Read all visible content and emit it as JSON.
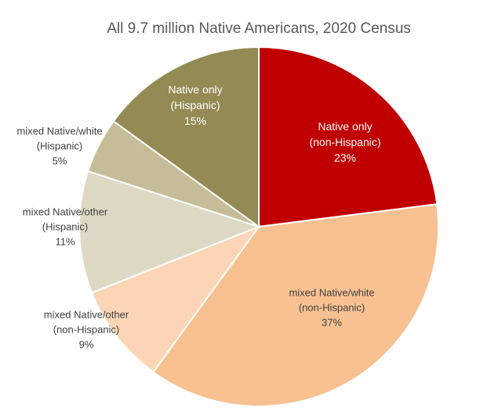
{
  "chart_data": {
    "type": "pie",
    "title": "All 9.7 million Native Americans, 2020 Census",
    "start": "12 o'clock, clockwise",
    "slices": [
      {
        "line1": "Native only",
        "line2": "(non-Hispanic)",
        "pct_label": "23%",
        "value": 23,
        "color": "#C00000",
        "label_color": "#FFFFFF"
      },
      {
        "line1": "mixed Native/white",
        "line2": "(non-Hispanic)",
        "pct_label": "37%",
        "value": 37,
        "color": "#F8C191",
        "label_color": "#404040"
      },
      {
        "line1": "mixed Native/other",
        "line2": "(non-Hispanic)",
        "pct_label": "9%",
        "value": 9,
        "color": "#FBD5B5",
        "label_color": "#404040"
      },
      {
        "line1": "mixed Native/other",
        "line2": "(Hispanic)",
        "pct_label": "11%",
        "value": 11,
        "color": "#DDD9C4",
        "label_color": "#404040"
      },
      {
        "line1": "mixed Native/white",
        "line2": "(Hispanic)",
        "pct_label": "5%",
        "value": 5,
        "color": "#C4BD97",
        "label_color": "#404040"
      },
      {
        "line1": "Native only",
        "line2": "(Hispanic)",
        "pct_label": "15%",
        "value": 15,
        "color": "#948A54",
        "label_color": "#FFFFFF"
      }
    ]
  }
}
